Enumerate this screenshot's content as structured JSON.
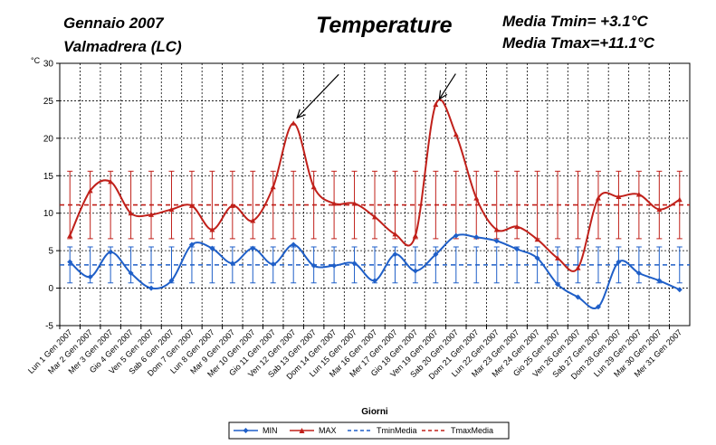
{
  "header": {
    "month_year": "Gennaio 2007",
    "location": "Valmadrera (LC)",
    "title": "Temperature",
    "media_tmin": "Media Tmin= +3.1°C",
    "media_tmax": "Media Tmax=+11.1°C"
  },
  "chart_data": {
    "type": "line",
    "title": "Temperature",
    "xlabel": "Giorni",
    "ylabel": "°C",
    "ylim": [
      -5,
      30
    ],
    "yticks": [
      -5,
      0,
      5,
      10,
      15,
      20,
      25,
      30
    ],
    "grid": true,
    "legend_position": "bottom",
    "categories": [
      "Lun 1 Gen 2007",
      "Mar 2 Gen 2007",
      "Mer 3 Gen 2007",
      "Gio 4 Gen 2007",
      "Ven 5 Gen 2007",
      "Sab 6 Gen 2007",
      "Dom 7 Gen 2007",
      "Lun 8 Gen 2007",
      "Mar 9 Gen 2007",
      "Mer 10 Gen 2007",
      "Gio 11 Gen 2007",
      "Ven 12 Gen 2007",
      "Sab 13 Gen 2007",
      "Dom 14 Gen 2007",
      "Lun 15 Gen 2007",
      "Mar 16 Gen 2007",
      "Mer 17 Gen 2007",
      "Gio 18 Gen 2007",
      "Ven 19 Gen 2007",
      "Sab 20 Gen 2007",
      "Dom 21 Gen 2007",
      "Lun 22 Gen 2007",
      "Mar 23 Gen 2007",
      "Mer 24 Gen 2007",
      "Gio 25 Gen 2007",
      "Ven 26 Gen 2007",
      "Sab 27 Gen 2007",
      "Dom 28 Gen 2007",
      "Lun 29 Gen 2007",
      "Mar 30 Gen 2007",
      "Mer 31 Gen 2007"
    ],
    "series": [
      {
        "name": "MIN",
        "color": "#1f5fc8",
        "marker": "diamond",
        "values": [
          3.5,
          1.5,
          4.8,
          2.0,
          0.0,
          1.0,
          5.8,
          5.3,
          3.3,
          5.3,
          3.2,
          5.8,
          3.0,
          3.0,
          3.3,
          1.0,
          4.5,
          2.3,
          4.5,
          7.0,
          6.8,
          6.3,
          5.2,
          4.0,
          0.5,
          -1.2,
          -2.5,
          3.5,
          2.0,
          1.0,
          -0.2
        ]
      },
      {
        "name": "MAX",
        "color": "#c0201a",
        "marker": "triangle",
        "values": [
          7.0,
          13.0,
          14.2,
          10.0,
          9.8,
          10.5,
          11.0,
          7.8,
          11.0,
          9.0,
          13.5,
          22.0,
          13.5,
          11.3,
          11.3,
          9.5,
          7.2,
          7.0,
          24.5,
          20.5,
          12.0,
          7.8,
          8.2,
          6.5,
          4.0,
          2.7,
          12.0,
          12.2,
          12.5,
          10.5,
          11.8
        ]
      },
      {
        "name": "TminMedia",
        "color": "#1f5fc8",
        "style": "dashed",
        "value": 3.1
      },
      {
        "name": "TmaxMedia",
        "color": "#c0201a",
        "style": "dashed",
        "value": 11.1
      }
    ],
    "error_bars": {
      "min_series_bar": 2.4,
      "max_series_bar": 4.5
    },
    "annotations": [
      {
        "type": "arrow",
        "target_day": "Ven 12 Gen 2007"
      },
      {
        "type": "arrow",
        "target_day": "Ven 19 Gen 2007"
      }
    ]
  }
}
